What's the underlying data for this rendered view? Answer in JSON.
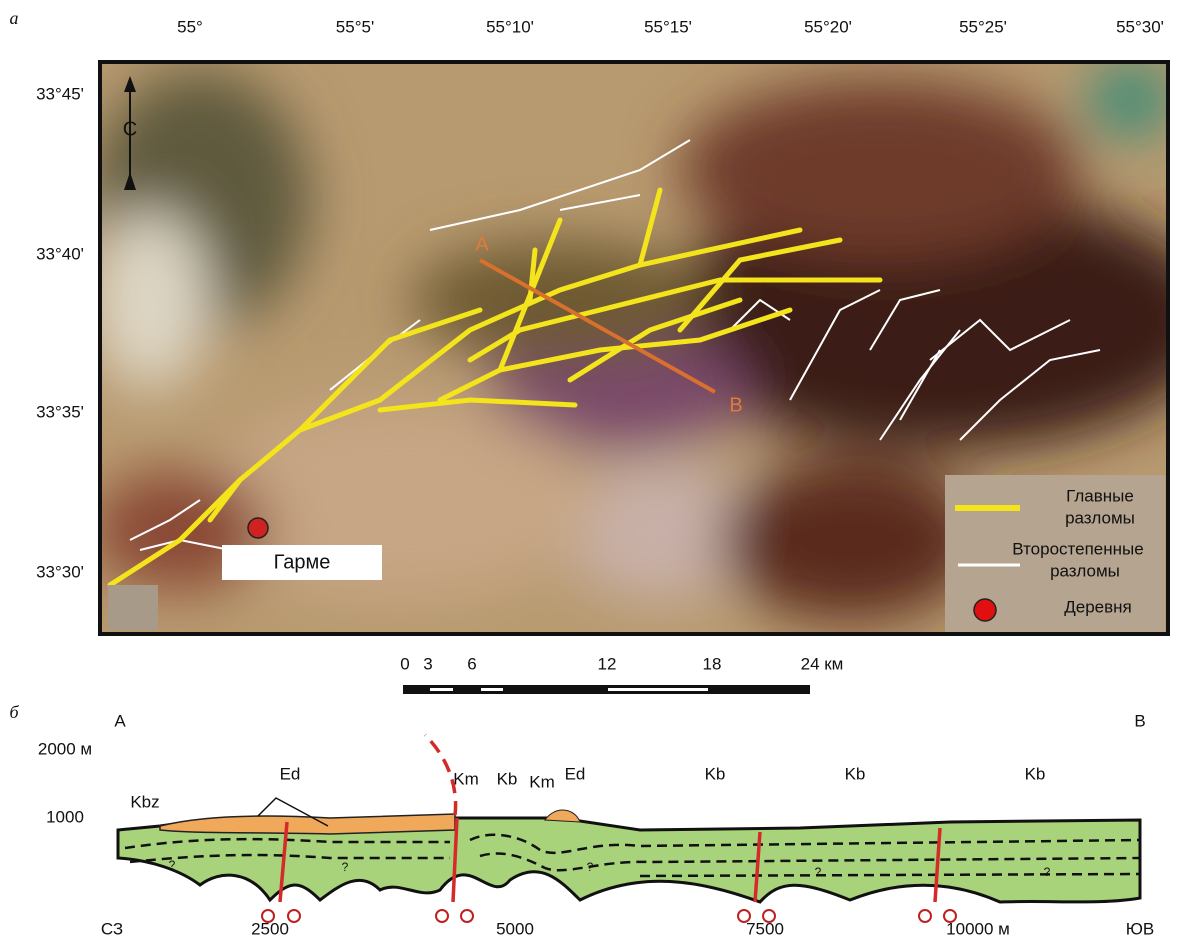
{
  "panel_a": {
    "label": "а",
    "lon_labels": [
      "55°",
      "55°5'",
      "55°10'",
      "55°15'",
      "55°20'",
      "55°25'",
      "55°30'"
    ],
    "lat_labels": [
      "33°45'",
      "33°40'",
      "33°35'",
      "33°30'"
    ],
    "north": "С",
    "profile_start": "А",
    "profile_end": "В",
    "village": "Гарме",
    "legend": {
      "main_faults": [
        "Главные",
        "разломы"
      ],
      "secondary_faults": [
        "Второстепенные",
        "разломы"
      ],
      "village": "Деревня"
    },
    "scale_labels": [
      "0",
      "3",
      "6",
      "12",
      "18",
      "24 км"
    ]
  },
  "panel_b": {
    "label": "б",
    "start": "А",
    "end": "В",
    "elevation_labels": [
      "2000 м",
      "1000"
    ],
    "units": [
      "Kbz",
      "Ed",
      "Km",
      "Kb",
      "Km",
      "Ed",
      "Kb",
      "Kb",
      "Kb"
    ],
    "unknown": [
      "?",
      "?",
      "?",
      "?",
      "?"
    ],
    "distance_labels": [
      "2500",
      "5000",
      "7500",
      "10000 м"
    ],
    "left_dir": "СЗ",
    "right_dir": "ЮВ"
  }
}
